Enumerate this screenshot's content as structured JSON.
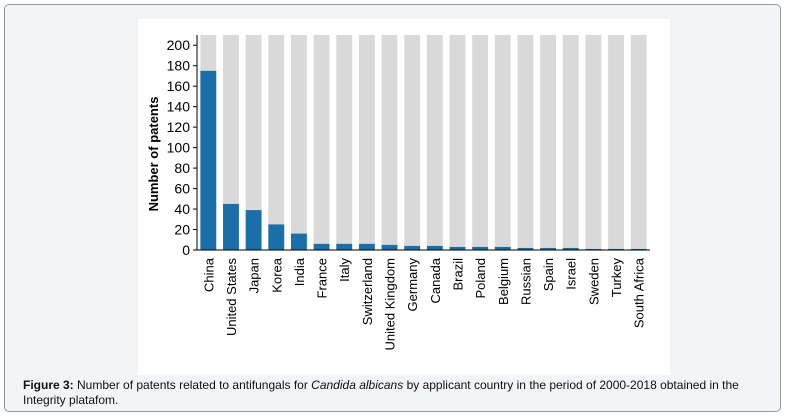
{
  "chart_data": {
    "type": "bar",
    "ylabel": "Number of patents",
    "ylim": [
      0,
      210
    ],
    "yticks": [
      0,
      20,
      40,
      60,
      80,
      100,
      120,
      140,
      160,
      180,
      200
    ],
    "categories": [
      "China",
      "United States",
      "Japan",
      "Korea",
      "India",
      "France",
      "Italy",
      "Switzerland",
      "United Kingdom",
      "Germany",
      "Canada",
      "Brazil",
      "Poland",
      "Belgium",
      "Russian",
      "Spain",
      "Israel",
      "Sweden",
      "Turkey",
      "South Africa"
    ],
    "values": [
      175,
      45,
      39,
      25,
      16,
      6,
      6,
      6,
      5,
      4,
      4,
      3,
      3,
      3,
      2,
      2,
      2,
      1,
      1,
      1
    ],
    "bar_color": "#1b6fa8",
    "background_bar_color": "#d9d9d9",
    "grid": false
  },
  "caption": {
    "label": "Figure 3:",
    "text_before": "Number of patents related to antifungals for",
    "species": "Candida albicans",
    "text_after": "by applicant country in the period of 2000-2018 obtained in the Integrity platafom."
  }
}
